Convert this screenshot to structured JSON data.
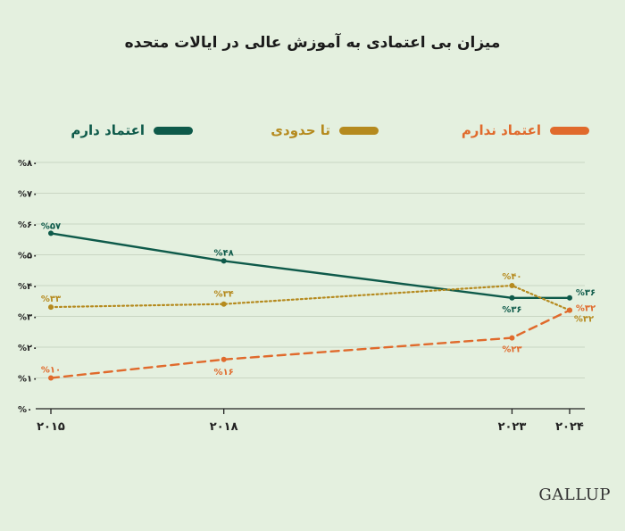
{
  "title": "میزان بی اعتمادی به آموزش عالی در ایالات متحده",
  "brand": "GALLUP",
  "colors": {
    "background": "#e4f0df",
    "grid": "#c9d6c3",
    "axis": "#222222",
    "confident": "#0e5a4a",
    "neutral": "#b58a1e",
    "not_confident": "#e06a2c"
  },
  "legend": [
    {
      "id": "confident",
      "label": "اعتماد دارم",
      "color": "#0e5a4a"
    },
    {
      "id": "neutral",
      "label": "تا حدودی",
      "color": "#b58a1e"
    },
    {
      "id": "not_confident",
      "label": "اعتماد ندارم",
      "color": "#e06a2c"
    }
  ],
  "chart_data": {
    "type": "line",
    "title": "میزان بی اعتمادی به آموزش عالی در ایالات متحده",
    "xlabel": "",
    "ylabel": "",
    "x": [
      2015,
      2018,
      2023,
      2024
    ],
    "x_tick_labels": [
      "۲۰۱۵",
      "۲۰۱۸",
      "۲۰۲۳",
      "۲۰۲۴"
    ],
    "ylim": [
      0,
      80
    ],
    "y_ticks": [
      0,
      10,
      20,
      30,
      40,
      50,
      60,
      70,
      80
    ],
    "y_tick_labels": [
      "%۰",
      "%۱۰",
      "%۲۰",
      "%۳۰",
      "%۴۰",
      "%۵۰",
      "%۶۰",
      "%۷۰",
      "%۸۰"
    ],
    "grid": true,
    "series": [
      {
        "name": "اعتماد دارم",
        "id": "confident",
        "style": "solid",
        "color": "#0e5a4a",
        "values": [
          57,
          48,
          36,
          36
        ],
        "labels": [
          "%۵۷",
          "%۴۸",
          "%۳۶",
          "%۳۶"
        ]
      },
      {
        "name": "تا حدودی",
        "id": "neutral",
        "style": "dotted",
        "color": "#b58a1e",
        "values": [
          33,
          34,
          40,
          32
        ],
        "labels": [
          "%۳۳",
          "%۳۴",
          "%۴۰",
          "%۳۲"
        ]
      },
      {
        "name": "اعتماد ندارم",
        "id": "not_confident",
        "style": "dashed",
        "color": "#e06a2c",
        "values": [
          10,
          16,
          23,
          32
        ],
        "labels": [
          "%۱۰",
          "%۱۶",
          "%۲۳",
          "%۳۲"
        ]
      }
    ]
  }
}
